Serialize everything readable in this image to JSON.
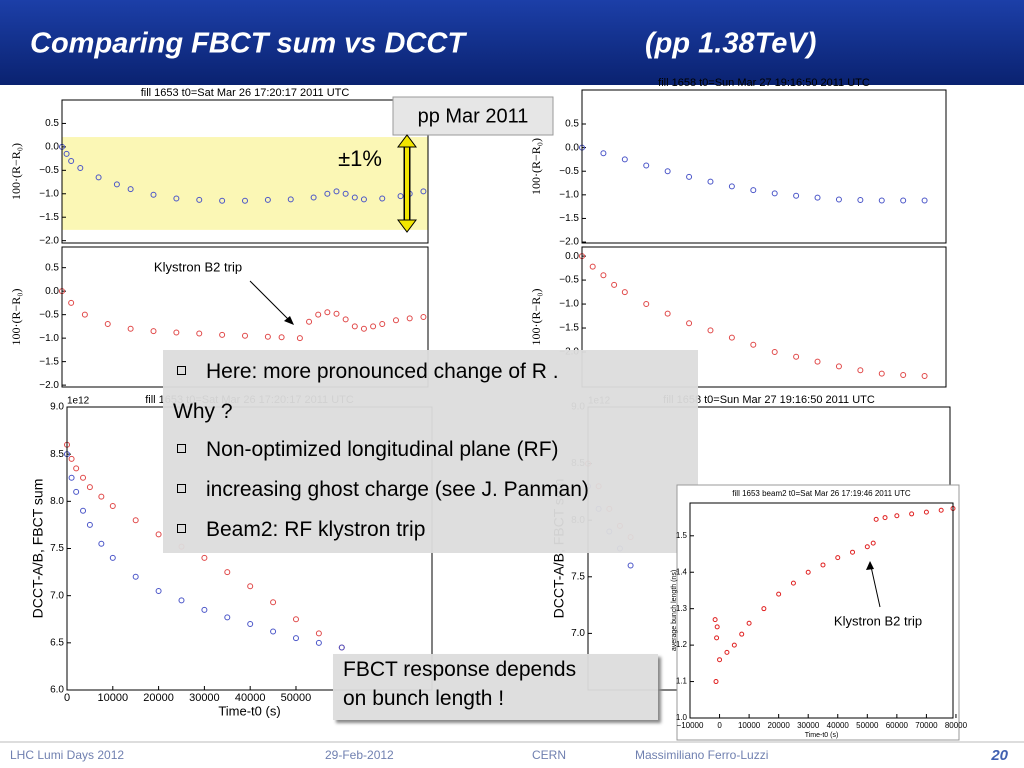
{
  "header": {
    "title": "Comparing FBCT sum vs DCCT",
    "subtitle": "(pp 1.38TeV)"
  },
  "callouts": {
    "period": "pp Mar 2011",
    "tolerance": "±1%"
  },
  "bullets": {
    "items": [
      "Here: more pronounced change of R .",
      "Why ?",
      "Non-optimized longitudinal plane (RF)",
      "increasing ghost charge (see J. Panman)",
      "Beam2: RF klystron trip"
    ]
  },
  "note": {
    "lines": [
      "FBCT response depends",
      "on bunch length !"
    ]
  },
  "footer": {
    "event": "LHC Lumi Days 2012",
    "date": "29-Feb-2012",
    "place": "CERN",
    "author": "Massimiliano Ferro-Luzzi",
    "page": "20"
  },
  "chart_data": [
    {
      "type": "scatter",
      "title": "fill 1653 t0=Sat Mar 26 17:20:17 2011 UTC",
      "ylabel": "100·(R−R₀)",
      "xlim": [
        0,
        80000
      ],
      "ylim": [
        -2.05,
        1.0
      ],
      "yticks": [
        0.5,
        {
          "value": 0,
          "label": "0.0"
        },
        {
          "value": -0.5,
          "label": "−0.5"
        },
        {
          "value": -1,
          "label": "−1.0"
        },
        {
          "value": -1.5,
          "label": "−1.5"
        },
        {
          "value": -2,
          "label": "−2.0"
        }
      ],
      "band": [
        -1.77,
        0.21
      ],
      "band_color": "#fbf7b5",
      "series": [
        {
          "color": "#4a55c8",
          "x": [
            0,
            1000,
            2000,
            4000,
            8000,
            12000,
            15000,
            20000,
            25000,
            30000,
            35000,
            40000,
            45000,
            50000,
            55000,
            58000,
            60000,
            62000,
            64000,
            66000,
            70000,
            74000,
            76000,
            79000
          ],
          "values": [
            0.0,
            -0.15,
            -0.3,
            -0.45,
            -0.65,
            -0.8,
            -0.9,
            -1.02,
            -1.1,
            -1.13,
            -1.15,
            -1.15,
            -1.13,
            -1.12,
            -1.08,
            -1.0,
            -0.95,
            -1.0,
            -1.08,
            -1.12,
            -1.1,
            -1.05,
            -1.0,
            -0.95
          ]
        }
      ]
    },
    {
      "type": "scatter",
      "title": "",
      "ylabel": "100·(R−R₀)",
      "xlim": [
        0,
        80000
      ],
      "ylim": [
        -2.04,
        0.94
      ],
      "yticks": [
        0.5,
        {
          "value": 0,
          "label": "0.0"
        },
        {
          "value": -0.5,
          "label": "−0.5"
        },
        {
          "value": -1,
          "label": "−1.0"
        },
        {
          "value": -1.5,
          "label": "−1.5"
        },
        {
          "value": -2,
          "label": "−2.0"
        }
      ],
      "annotation": "Klystron B2 trip",
      "series": [
        {
          "color": "#e04848",
          "x": [
            0,
            2000,
            5000,
            10000,
            15000,
            20000,
            25000,
            30000,
            35000,
            40000,
            45000,
            48000,
            52000,
            54000,
            56000,
            58000,
            60000,
            62000,
            64000,
            66000,
            68000,
            70000,
            73000,
            76000,
            79000
          ],
          "values": [
            0.0,
            -0.25,
            -0.5,
            -0.7,
            -0.8,
            -0.85,
            -0.88,
            -0.9,
            -0.93,
            -0.95,
            -0.97,
            -0.98,
            -1.0,
            -0.65,
            -0.5,
            -0.45,
            -0.48,
            -0.6,
            -0.75,
            -0.8,
            -0.75,
            -0.7,
            -0.62,
            -0.58,
            -0.55
          ]
        }
      ]
    },
    {
      "type": "scatter",
      "title": "fill 1658 t0=Sun Mar 27 19:16:50 2011 UTC",
      "ylabel": "100·(R−R₀)",
      "xlim": [
        0,
        85000
      ],
      "ylim": [
        -2.02,
        1.22
      ],
      "yticks": [
        0.5,
        {
          "value": 0,
          "label": "0.0"
        },
        {
          "value": -0.5,
          "label": "−0.5"
        },
        {
          "value": -1,
          "label": "−1.0"
        },
        {
          "value": -1.5,
          "label": "−1.5"
        },
        {
          "value": -2,
          "label": "−2.0"
        }
      ],
      "series": [
        {
          "color": "#4a55c8",
          "x": [
            0,
            5000,
            10000,
            15000,
            20000,
            25000,
            30000,
            35000,
            40000,
            45000,
            50000,
            55000,
            60000,
            65000,
            70000,
            75000,
            80000
          ],
          "values": [
            0.0,
            -0.12,
            -0.25,
            -0.38,
            -0.5,
            -0.62,
            -0.72,
            -0.82,
            -0.9,
            -0.97,
            -1.02,
            -1.06,
            -1.1,
            -1.11,
            -1.12,
            -1.12,
            -1.12
          ]
        }
      ]
    },
    {
      "type": "scatter",
      "title": "",
      "ylabel": "100·(R−R₀)",
      "xlim": [
        0,
        85000
      ],
      "ylim": [
        -2.73,
        0.19
      ],
      "yticks": [
        {
          "value": 0,
          "label": "0.0"
        },
        {
          "value": -0.5,
          "label": "−0.5"
        },
        {
          "value": -1,
          "label": "−1.0"
        },
        {
          "value": -1.5,
          "label": "−1.5"
        },
        {
          "value": -2,
          "label": "−2.0"
        }
      ],
      "series": [
        {
          "color": "#e04848",
          "x": [
            0,
            2500,
            5000,
            7500,
            10000,
            15000,
            20000,
            25000,
            30000,
            35000,
            40000,
            45000,
            50000,
            55000,
            60000,
            65000,
            70000,
            75000,
            80000
          ],
          "values": [
            0.0,
            -0.22,
            -0.4,
            -0.6,
            -0.75,
            -1.0,
            -1.2,
            -1.4,
            -1.55,
            -1.7,
            -1.85,
            -2.0,
            -2.1,
            -2.2,
            -2.3,
            -2.38,
            -2.45,
            -2.48,
            -2.5
          ]
        }
      ]
    },
    {
      "type": "scatter",
      "title": "fill 1653 t0=Sat Mar 26 17:20:17 2011 UTC",
      "ylabel": "DCCT-A/B, FBCT sum",
      "xlabel": "Time-t0 (s)",
      "offset_label": "1e12",
      "xlim": [
        0,
        79700
      ],
      "ylim": [
        6,
        9
      ],
      "xticks": [
        0,
        10000,
        20000,
        30000,
        40000,
        50000
      ],
      "yticks": [
        {
          "value": 6,
          "label": "6.0"
        },
        {
          "value": 6.5,
          "label": "6.5"
        },
        {
          "value": 7,
          "label": "7.0"
        },
        {
          "value": 7.5,
          "label": "7.5"
        },
        {
          "value": 8,
          "label": "8.0"
        },
        {
          "value": 8.5,
          "label": "8.5"
        },
        {
          "value": 9,
          "label": "9.0"
        }
      ],
      "series": [
        {
          "color": "#e04848",
          "x": [
            0,
            1000,
            2000,
            3500,
            5000,
            7500,
            10000,
            15000,
            20000,
            25000,
            30000,
            35000,
            40000,
            45000,
            50000,
            55000,
            60000
          ],
          "values": [
            8.6,
            8.45,
            8.35,
            8.25,
            8.15,
            8.05,
            7.95,
            7.8,
            7.65,
            7.52,
            7.4,
            7.25,
            7.1,
            6.93,
            6.75,
            6.6,
            6.45
          ]
        },
        {
          "color": "#4a55c8",
          "x": [
            0,
            1000,
            2000,
            3500,
            5000,
            7500,
            10000,
            15000,
            20000,
            25000,
            30000,
            35000,
            40000,
            45000,
            50000,
            55000,
            60000
          ],
          "values": [
            8.5,
            8.25,
            8.1,
            7.9,
            7.75,
            7.55,
            7.4,
            7.2,
            7.05,
            6.95,
            6.85,
            6.77,
            6.7,
            6.62,
            6.55,
            6.5,
            6.45
          ]
        }
      ]
    },
    {
      "type": "scatter",
      "title": "fill 1658 t0=Sun Mar 27 19:16:50 2011 UTC",
      "ylabel": "DCCT-A/B, FBCT sum",
      "offset_label": "1e12",
      "xlim": [
        0,
        85000
      ],
      "ylim": [
        6.5,
        9
      ],
      "yticks": [
        {
          "value": 7,
          "label": "7.0"
        },
        {
          "value": 7.5,
          "label": "7.5"
        },
        {
          "value": 8,
          "label": "8.0"
        },
        {
          "value": 8.5,
          "label": "8.5"
        },
        {
          "value": 9,
          "label": "9.0"
        }
      ],
      "series": [
        {
          "color": "#e04848",
          "x": [
            0,
            2500,
            5000,
            7500,
            10000
          ],
          "values": [
            8.5,
            8.3,
            8.1,
            7.95,
            7.85
          ]
        },
        {
          "color": "#4a55c8",
          "x": [
            0,
            2500,
            5000,
            7500,
            10000
          ],
          "values": [
            8.3,
            8.1,
            7.9,
            7.75,
            7.6
          ]
        }
      ]
    },
    {
      "type": "scatter",
      "title": "fill 1653 beam2 t0=Sat Mar 26 17:19:46 2011 UTC",
      "ylabel": "average bunch length (ns)",
      "xlabel": "Time-t0 (s)",
      "xlim": [
        -10000,
        79000
      ],
      "ylim": [
        1.0,
        1.59
      ],
      "xticks": [
        {
          "value": -10000,
          "label": "−10000"
        },
        0,
        10000,
        20000,
        30000,
        40000,
        50000,
        60000,
        70000,
        80000
      ],
      "yticks": [
        {
          "value": 1,
          "label": "1.0"
        },
        {
          "value": 1.1,
          "label": "1.1"
        },
        {
          "value": 1.2,
          "label": "1.2"
        },
        {
          "value": 1.3,
          "label": "1.3"
        },
        {
          "value": 1.4,
          "label": "1.4"
        },
        {
          "value": 1.5,
          "label": "1.5"
        }
      ],
      "annotation": "Klystron B2 trip",
      "series": [
        {
          "color": "#e02020",
          "x": [
            -1500,
            -1200,
            -1000,
            -800,
            0,
            2500,
            5000,
            7500,
            10000,
            15000,
            20000,
            25000,
            30000,
            35000,
            40000,
            45000,
            50000,
            52000,
            53000,
            56000,
            60000,
            65000,
            70000,
            75000,
            79000
          ],
          "values": [
            1.27,
            1.1,
            1.22,
            1.25,
            1.16,
            1.18,
            1.2,
            1.23,
            1.26,
            1.3,
            1.34,
            1.37,
            1.4,
            1.42,
            1.44,
            1.455,
            1.47,
            1.48,
            1.545,
            1.55,
            1.555,
            1.56,
            1.565,
            1.57,
            1.575
          ]
        }
      ]
    }
  ]
}
